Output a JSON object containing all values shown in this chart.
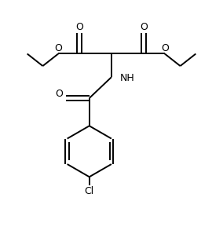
{
  "bg_color": "#ffffff",
  "line_color": "#000000",
  "line_width": 1.4,
  "font_size": 9,
  "figsize": [
    2.84,
    2.98
  ],
  "dpi": 100,
  "xlim": [
    0,
    10
  ],
  "ylim": [
    0,
    10.5
  ]
}
